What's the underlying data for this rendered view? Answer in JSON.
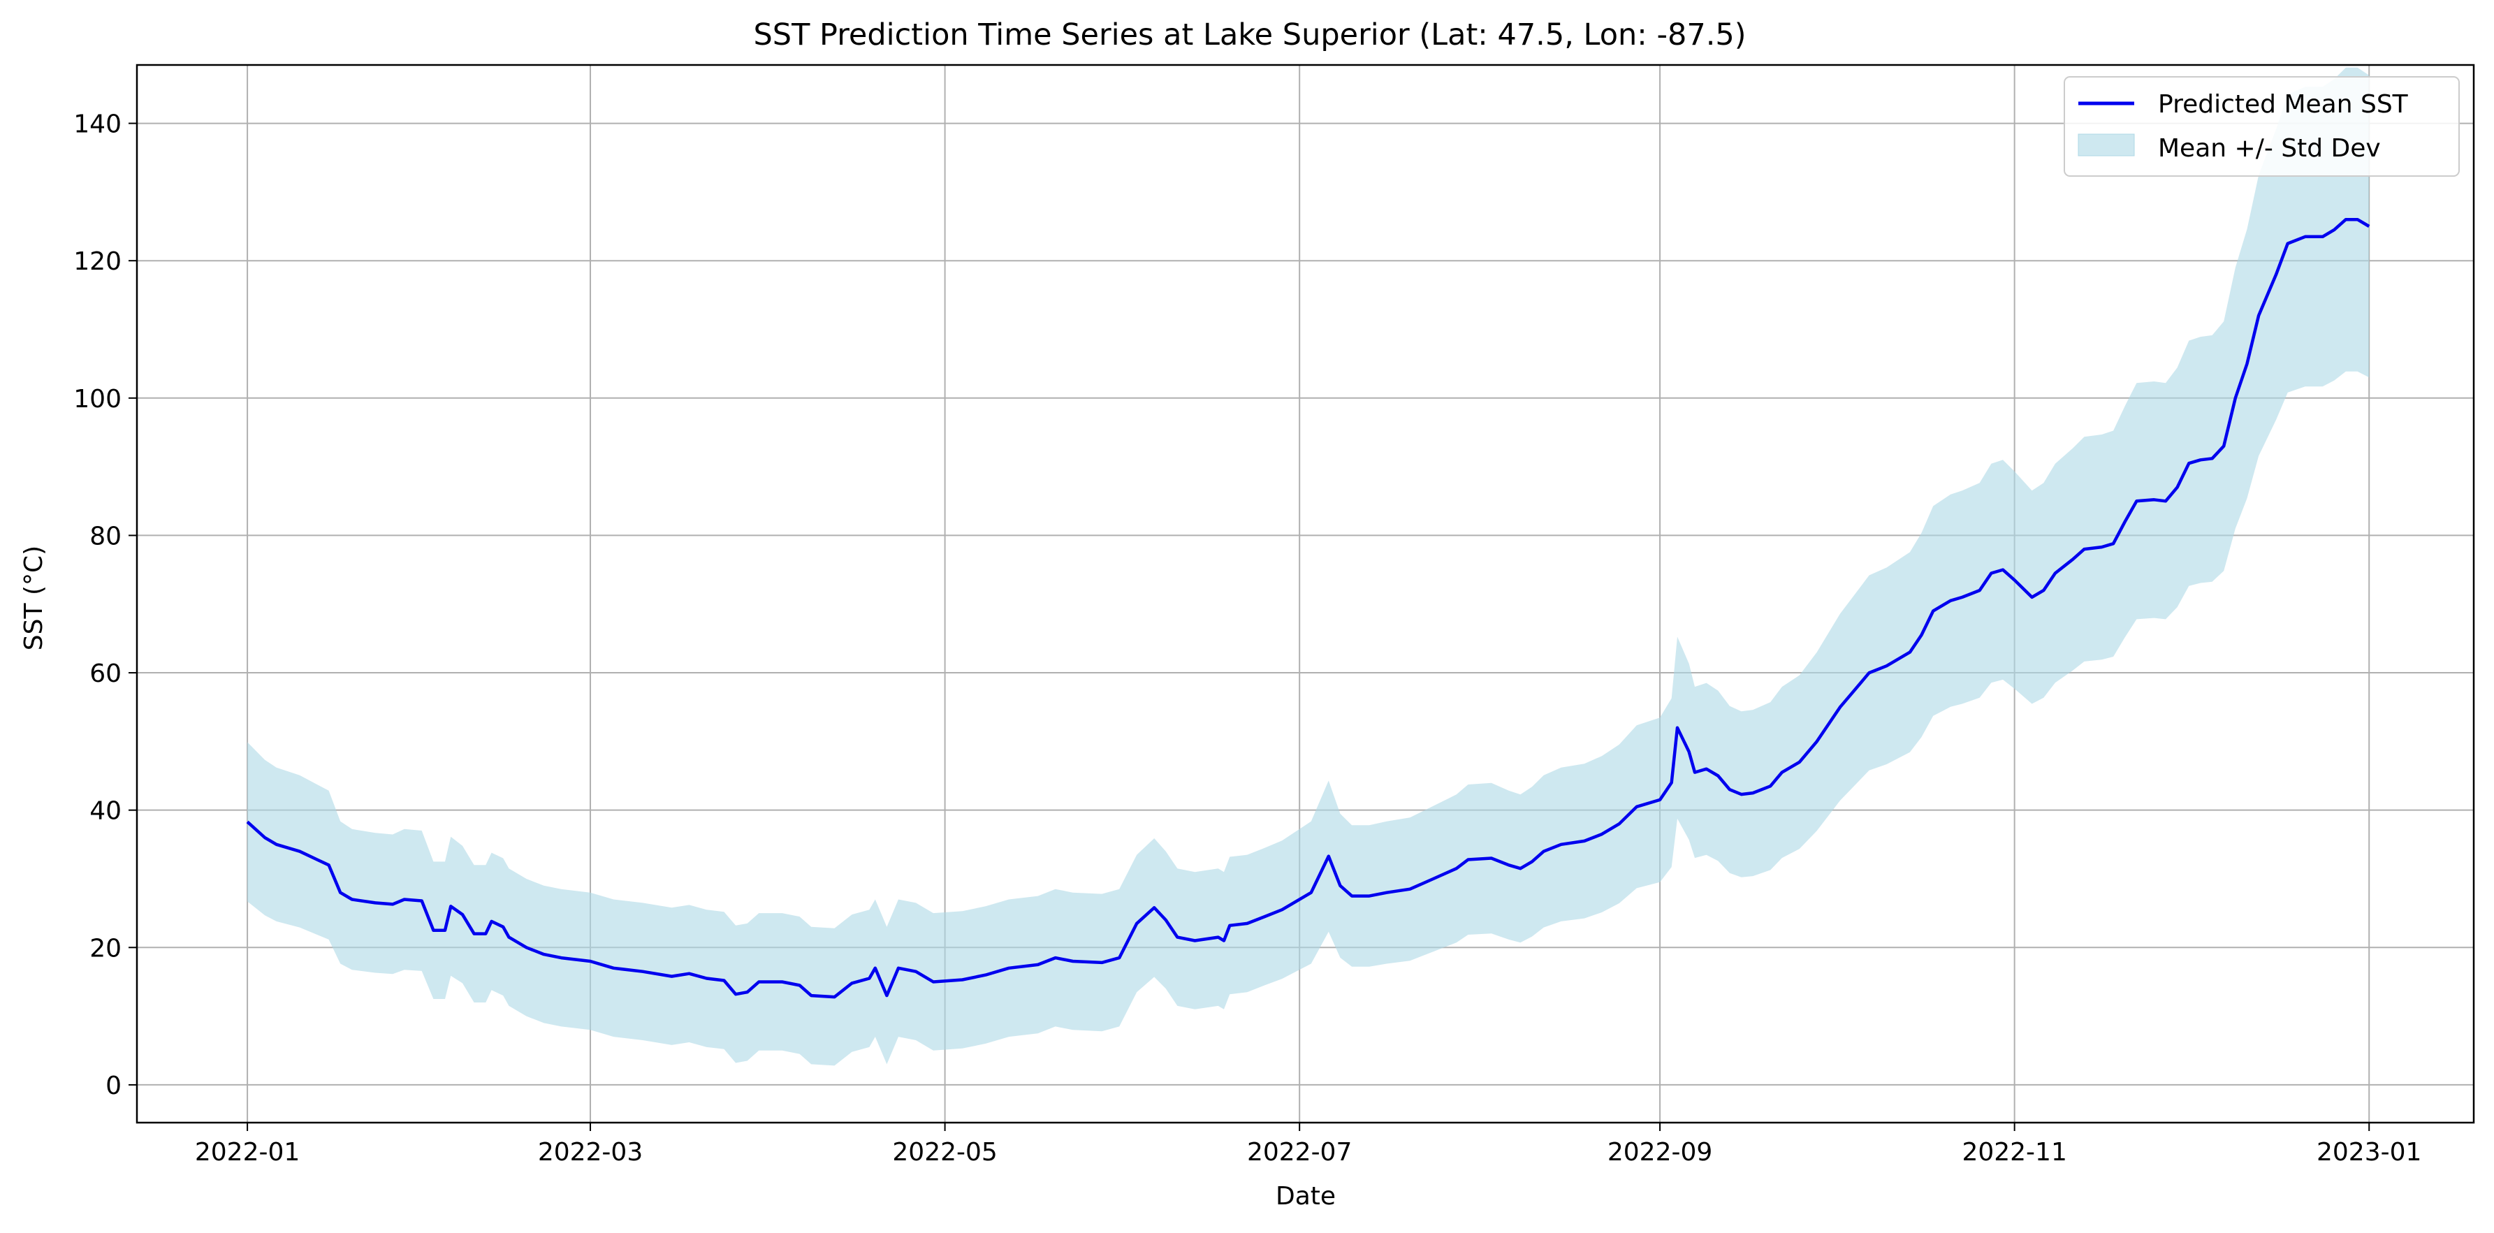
{
  "chart_data": {
    "type": "line",
    "title": "SST Prediction Time Series at Lake Superior (Lat: 47.5, Lon: -87.5)",
    "xlabel": "Date",
    "ylabel": "SST (°C)",
    "xlim": [
      "2021-12-13",
      "2023-01-19"
    ],
    "ylim": [
      -5.5,
      148.5
    ],
    "x_ticks": [
      "2022-01",
      "2022-03",
      "2022-05",
      "2022-07",
      "2022-09",
      "2022-11",
      "2023-01"
    ],
    "y_ticks": [
      0,
      20,
      40,
      60,
      80,
      100,
      120,
      140
    ],
    "grid": true,
    "legend": {
      "position": "top-right"
    },
    "series": [
      {
        "name": "Predicted Mean SST",
        "kind": "line",
        "color": "#0000ee",
        "points": [
          [
            "2022-01-01",
            38.3
          ],
          [
            "2022-01-04",
            36.0
          ],
          [
            "2022-01-06",
            35.0
          ],
          [
            "2022-01-10",
            34.0
          ],
          [
            "2022-01-13",
            32.8
          ],
          [
            "2022-01-15",
            32.0
          ],
          [
            "2022-01-17",
            28.0
          ],
          [
            "2022-01-19",
            27.0
          ],
          [
            "2022-01-23",
            26.5
          ],
          [
            "2022-01-26",
            26.3
          ],
          [
            "2022-01-28",
            27.0
          ],
          [
            "2022-01-31",
            26.8
          ],
          [
            "2022-02-02",
            22.5
          ],
          [
            "2022-02-04",
            22.5
          ],
          [
            "2022-02-05",
            26.0
          ],
          [
            "2022-02-07",
            24.8
          ],
          [
            "2022-02-09",
            22.0
          ],
          [
            "2022-02-11",
            22.0
          ],
          [
            "2022-02-12",
            23.8
          ],
          [
            "2022-02-14",
            23.0
          ],
          [
            "2022-02-15",
            21.5
          ],
          [
            "2022-02-18",
            20.0
          ],
          [
            "2022-02-21",
            19.0
          ],
          [
            "2022-02-24",
            18.5
          ],
          [
            "2022-03-01",
            18.0
          ],
          [
            "2022-03-05",
            17.0
          ],
          [
            "2022-03-10",
            16.5
          ],
          [
            "2022-03-15",
            15.8
          ],
          [
            "2022-03-18",
            16.2
          ],
          [
            "2022-03-21",
            15.5
          ],
          [
            "2022-03-24",
            15.2
          ],
          [
            "2022-03-26",
            13.2
          ],
          [
            "2022-03-28",
            13.5
          ],
          [
            "2022-03-30",
            15.0
          ],
          [
            "2022-04-03",
            15.0
          ],
          [
            "2022-04-06",
            14.5
          ],
          [
            "2022-04-08",
            13.0
          ],
          [
            "2022-04-12",
            12.8
          ],
          [
            "2022-04-15",
            14.8
          ],
          [
            "2022-04-18",
            15.5
          ],
          [
            "2022-04-19",
            17.0
          ],
          [
            "2022-04-21",
            13.0
          ],
          [
            "2022-04-23",
            17.0
          ],
          [
            "2022-04-26",
            16.5
          ],
          [
            "2022-04-29",
            15.0
          ],
          [
            "2022-05-04",
            15.3
          ],
          [
            "2022-05-08",
            16.0
          ],
          [
            "2022-05-12",
            17.0
          ],
          [
            "2022-05-17",
            17.5
          ],
          [
            "2022-05-20",
            18.5
          ],
          [
            "2022-05-23",
            18.0
          ],
          [
            "2022-05-28",
            17.8
          ],
          [
            "2022-05-31",
            18.5
          ],
          [
            "2022-06-03",
            23.5
          ],
          [
            "2022-06-06",
            25.8
          ],
          [
            "2022-06-08",
            24.0
          ],
          [
            "2022-06-10",
            21.5
          ],
          [
            "2022-06-13",
            21.0
          ],
          [
            "2022-06-17",
            21.5
          ],
          [
            "2022-06-18",
            21.0
          ],
          [
            "2022-06-19",
            23.2
          ],
          [
            "2022-06-22",
            23.5
          ],
          [
            "2022-06-25",
            24.5
          ],
          [
            "2022-06-28",
            25.5
          ],
          [
            "2022-07-03",
            28.0
          ],
          [
            "2022-07-06",
            33.3
          ],
          [
            "2022-07-08",
            29.0
          ],
          [
            "2022-07-10",
            27.5
          ],
          [
            "2022-07-13",
            27.5
          ],
          [
            "2022-07-16",
            28.0
          ],
          [
            "2022-07-20",
            28.5
          ],
          [
            "2022-07-24",
            30.0
          ],
          [
            "2022-07-28",
            31.5
          ],
          [
            "2022-07-30",
            32.8
          ],
          [
            "2022-08-03",
            33.0
          ],
          [
            "2022-08-06",
            32.0
          ],
          [
            "2022-08-08",
            31.5
          ],
          [
            "2022-08-10",
            32.5
          ],
          [
            "2022-08-12",
            34.0
          ],
          [
            "2022-08-15",
            35.0
          ],
          [
            "2022-08-19",
            35.5
          ],
          [
            "2022-08-22",
            36.5
          ],
          [
            "2022-08-25",
            38.0
          ],
          [
            "2022-08-28",
            40.5
          ],
          [
            "2022-09-01",
            41.5
          ],
          [
            "2022-09-03",
            44.0
          ],
          [
            "2022-09-04",
            52.0
          ],
          [
            "2022-09-06",
            48.5
          ],
          [
            "2022-09-07",
            45.5
          ],
          [
            "2022-09-09",
            46.0
          ],
          [
            "2022-09-11",
            45.0
          ],
          [
            "2022-09-13",
            43.0
          ],
          [
            "2022-09-15",
            42.3
          ],
          [
            "2022-09-17",
            42.5
          ],
          [
            "2022-09-20",
            43.5
          ],
          [
            "2022-09-22",
            45.5
          ],
          [
            "2022-09-25",
            47.0
          ],
          [
            "2022-09-28",
            50.0
          ],
          [
            "2022-10-02",
            55.0
          ],
          [
            "2022-10-04",
            57.0
          ],
          [
            "2022-10-07",
            60.0
          ],
          [
            "2022-10-10",
            61.0
          ],
          [
            "2022-10-14",
            63.0
          ],
          [
            "2022-10-16",
            65.5
          ],
          [
            "2022-10-18",
            69.0
          ],
          [
            "2022-10-21",
            70.5
          ],
          [
            "2022-10-23",
            71.0
          ],
          [
            "2022-10-26",
            72.0
          ],
          [
            "2022-10-28",
            74.5
          ],
          [
            "2022-10-30",
            75.0
          ],
          [
            "2022-11-01",
            73.5
          ],
          [
            "2022-11-04",
            71.0
          ],
          [
            "2022-11-06",
            72.0
          ],
          [
            "2022-11-08",
            74.5
          ],
          [
            "2022-11-11",
            76.5
          ],
          [
            "2022-11-13",
            78.0
          ],
          [
            "2022-11-16",
            78.3
          ],
          [
            "2022-11-18",
            78.8
          ],
          [
            "2022-11-20",
            82.0
          ],
          [
            "2022-11-22",
            85.0
          ],
          [
            "2022-11-25",
            85.2
          ],
          [
            "2022-11-27",
            85.0
          ],
          [
            "2022-11-29",
            87.0
          ],
          [
            "2022-12-01",
            90.5
          ],
          [
            "2022-12-03",
            91.0
          ],
          [
            "2022-12-05",
            91.2
          ],
          [
            "2022-12-07",
            93.0
          ],
          [
            "2022-12-09",
            100.0
          ],
          [
            "2022-12-11",
            105.0
          ],
          [
            "2022-12-13",
            112.0
          ],
          [
            "2022-12-16",
            118.0
          ],
          [
            "2022-12-18",
            122.5
          ],
          [
            "2022-12-21",
            123.5
          ],
          [
            "2022-12-24",
            123.5
          ],
          [
            "2022-12-26",
            124.5
          ],
          [
            "2022-12-28",
            126.0
          ],
          [
            "2022-12-30",
            126.0
          ],
          [
            "2023-01-01",
            125.0
          ]
        ]
      }
    ]
  }
}
